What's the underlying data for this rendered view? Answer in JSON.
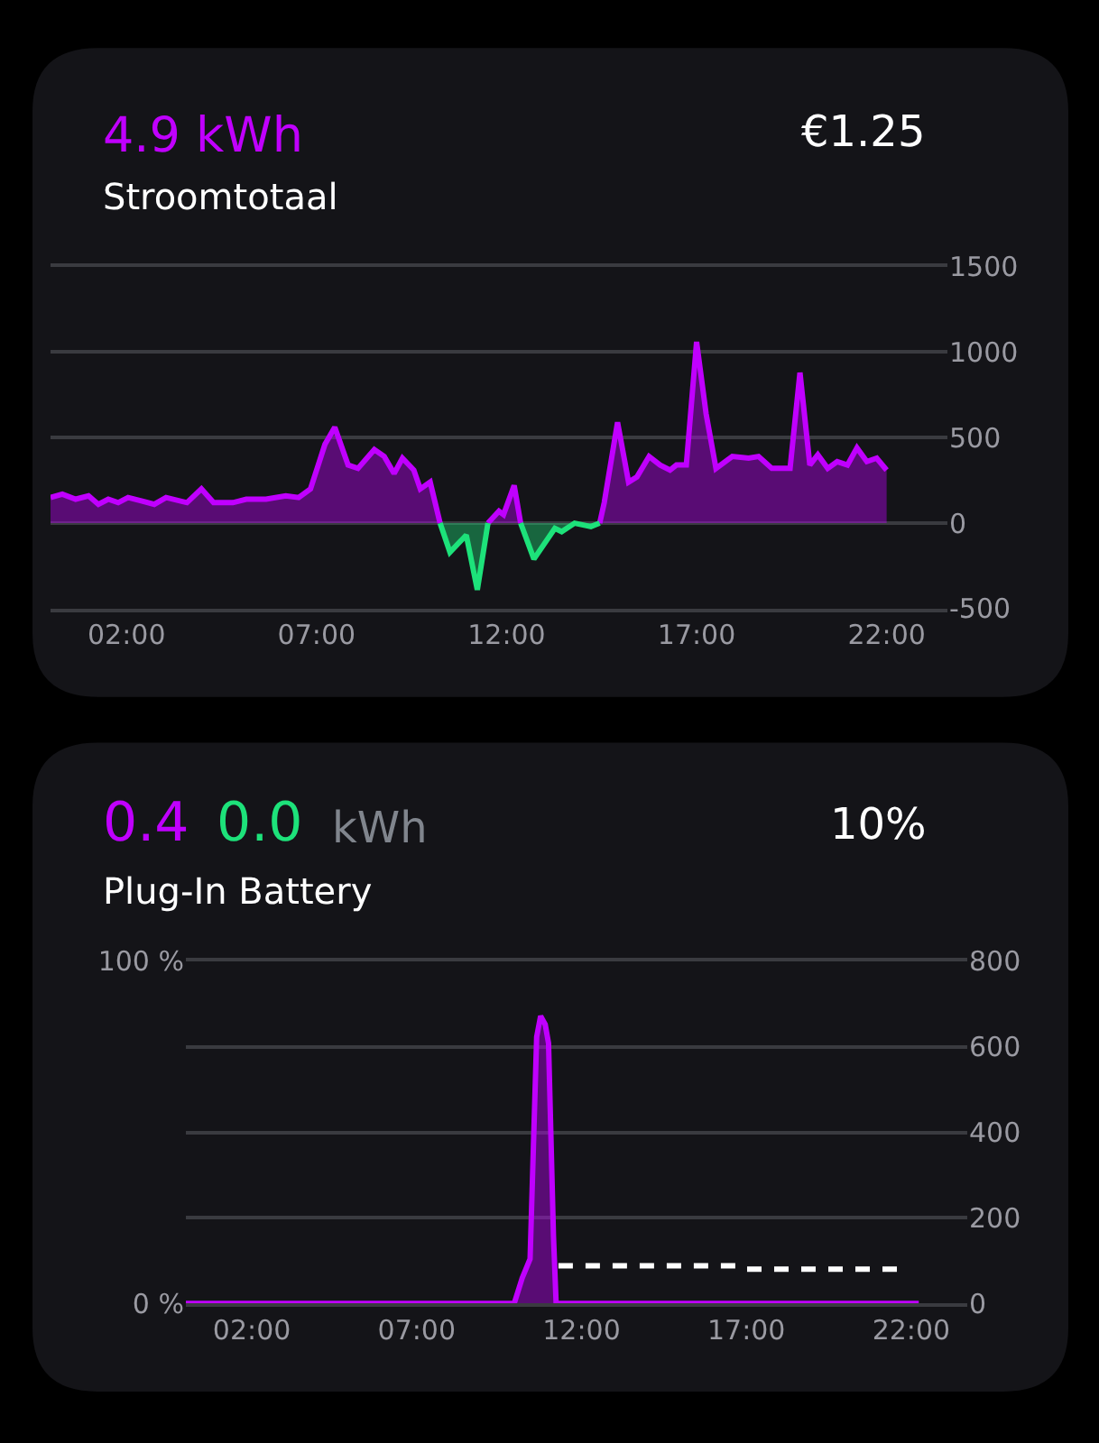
{
  "chart_data": [
    {
      "type": "area",
      "title": "Stroomtotaal",
      "annotations": [
        "4.9 kWh",
        "€1.25"
      ],
      "x": [
        0,
        0.31,
        0.66,
        1.0,
        1.26,
        1.52,
        1.78,
        2.04,
        2.39,
        2.73,
        3.04,
        3.59,
        3.97,
        4.29,
        4.8,
        5.15,
        5.67,
        6.19,
        6.53,
        6.84,
        7.22,
        7.48,
        7.83,
        8.09,
        8.52,
        8.78,
        9.04,
        9.26,
        9.56,
        9.73,
        9.99,
        10.25,
        10.51,
        10.94,
        11.23,
        11.51,
        11.8,
        11.92,
        12.2,
        12.37,
        12.72,
        13.27,
        13.45,
        13.79,
        14.22,
        14.45,
        14.57,
        14.92,
        15.21,
        15.43,
        15.75,
        16.04,
        16.3,
        16.47,
        16.73,
        17.0,
        17.25,
        17.51,
        17.94,
        18.37,
        18.63,
        18.98,
        19.46,
        19.72,
        19.98,
        20.19,
        20.45,
        20.7,
        20.97,
        21.22,
        21.48,
        21.74,
        22.0
      ],
      "series": [
        {
          "color": "#c000ff",
          "values": [
            150,
            170,
            140,
            160,
            110,
            140,
            120,
            150,
            130,
            110,
            150,
            120,
            200,
            120,
            120,
            140,
            140,
            160,
            150,
            200,
            460,
            560,
            340,
            320,
            430,
            390,
            290,
            380,
            310,
            200,
            240,
            0,
            null,
            null,
            null,
            0,
            70,
            50,
            220,
            0,
            null,
            null,
            null,
            null,
            null,
            0,
            120,
            590,
            240,
            270,
            390,
            340,
            310,
            340,
            340,
            1060,
            640,
            320,
            390,
            380,
            390,
            320,
            320,
            880,
            340,
            400,
            320,
            360,
            340,
            440,
            360,
            380,
            310
          ]
        },
        {
          "color": "#1de27a",
          "values": [
            null,
            null,
            null,
            null,
            null,
            null,
            null,
            null,
            null,
            null,
            null,
            null,
            null,
            null,
            null,
            null,
            null,
            null,
            null,
            null,
            null,
            null,
            null,
            null,
            null,
            null,
            null,
            null,
            null,
            null,
            null,
            0,
            -170,
            -70,
            -390,
            0,
            null,
            null,
            null,
            0,
            -210,
            -30,
            -50,
            0,
            -20,
            0,
            null,
            null,
            null,
            null,
            null,
            null,
            null,
            null,
            null,
            null,
            null,
            null,
            null,
            null,
            null,
            null,
            null,
            null,
            null,
            null,
            null,
            null,
            null,
            null,
            null,
            null,
            null
          ]
        }
      ],
      "xlim": [
        0,
        23.6
      ],
      "xticks": [
        {
          "value": 2,
          "label": "02:00"
        },
        {
          "value": 7,
          "label": "07:00"
        },
        {
          "value": 12,
          "label": "12:00"
        },
        {
          "value": 17,
          "label": "17:00"
        },
        {
          "value": 22,
          "label": "22:00"
        }
      ],
      "ylim": [
        -500,
        1500
      ],
      "yticks": [
        -500,
        0,
        500,
        1000,
        1500
      ],
      "grid": "y"
    },
    {
      "type": "area",
      "title": "Plug-In Battery",
      "annotations": [
        "0.4",
        "0.0",
        "kWh",
        "10%"
      ],
      "series": [
        {
          "color": "#c000ff",
          "axis": "y2",
          "x": [
            0,
            9.96,
            10.2,
            10.44,
            10.64,
            10.76,
            10.9,
            11.0,
            11.15,
            11.23,
            22.23
          ],
          "values": [
            0,
            0,
            59,
            104,
            623,
            672,
            652,
            608,
            156,
            0,
            0
          ]
        },
        {
          "type": "line",
          "color": "#ffffff",
          "line_style": "dashed",
          "x": [
            11.3,
            16.8,
            17.0,
            21.75
          ],
          "values": [
            11,
            11,
            10,
            10
          ]
        }
      ],
      "xlim": [
        0,
        23.7
      ],
      "xticks": [
        {
          "value": 2,
          "label": "02:00"
        },
        {
          "value": 7,
          "label": "07:00"
        },
        {
          "value": 12,
          "label": "12:00"
        },
        {
          "value": 17,
          "label": "17:00"
        },
        {
          "value": 22,
          "label": "22:00"
        }
      ],
      "ylim": [
        0,
        100
      ],
      "yticks": [
        {
          "value": 0,
          "label": "0 %"
        },
        {
          "value": 100,
          "label": "100 %"
        }
      ],
      "y2lim": [
        0,
        800
      ],
      "y2ticks": [
        0,
        200,
        400,
        600,
        800
      ],
      "grid": "y2"
    }
  ]
}
